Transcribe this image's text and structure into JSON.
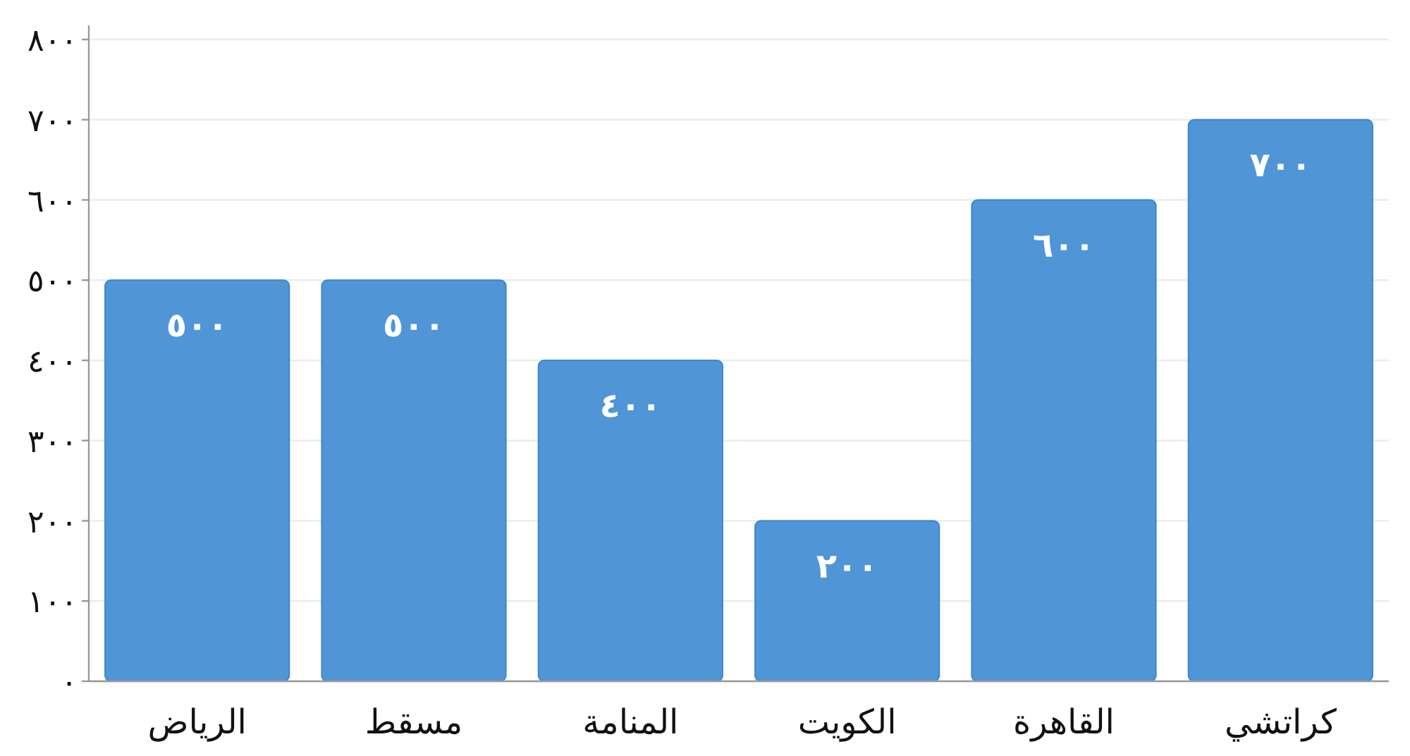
{
  "chart_data": {
    "type": "bar",
    "categories": [
      "الرياض",
      "مسقط",
      "المنامة",
      "الكويت",
      "القاهرة",
      "كراتشي"
    ],
    "values": [
      500,
      500,
      400,
      200,
      600,
      700
    ],
    "value_labels": [
      "٥٠٠",
      "٥٠٠",
      "٤٠٠",
      "٢٠٠",
      "٦٠٠",
      "٧٠٠"
    ],
    "color": "#5095d6",
    "ylim": [
      0,
      800
    ],
    "yticks": [
      {
        "value": 0,
        "label": "٠"
      },
      {
        "value": 100,
        "label": "١٠٠"
      },
      {
        "value": 200,
        "label": "٢٠٠"
      },
      {
        "value": 300,
        "label": "٣٠٠"
      },
      {
        "value": 400,
        "label": "٤٠٠"
      },
      {
        "value": 500,
        "label": "٥٠٠"
      },
      {
        "value": 600,
        "label": "٦٠٠"
      },
      {
        "value": 700,
        "label": "٧٠٠"
      },
      {
        "value": 800,
        "label": "٨٠٠"
      }
    ],
    "grid": "y"
  }
}
